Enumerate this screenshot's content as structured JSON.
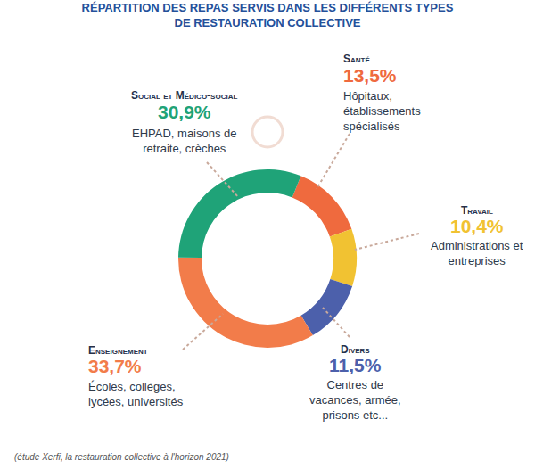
{
  "chart_data": {
    "type": "pie",
    "title": [
      "RÉPARTITION DES REPAS SERVIS DANS LES DIFFÉRENTS TYPES",
      "DE RESTAURATION COLLECTIVE"
    ],
    "categories": [
      "Santé",
      "Travail",
      "Divers",
      "Enseignement",
      "Social et Médico-social"
    ],
    "values": [
      13.5,
      10.4,
      11.5,
      33.7,
      30.9
    ],
    "value_labels": [
      "13,5%",
      "10,4%",
      "11,5%",
      "33,7%",
      "30,9%"
    ],
    "colors": [
      "#ef6a3e",
      "#f1c232",
      "#4c60ab",
      "#f27c4a",
      "#1fa378"
    ],
    "descriptions": [
      [
        "Hôpitaux,",
        "établissements",
        "spécialisés"
      ],
      [
        "Administrations et",
        "entreprises"
      ],
      [
        "Centres de",
        "vacances, armée,",
        "prisons etc..."
      ],
      [
        "Écoles, collèges,",
        "lycées, universités"
      ],
      [
        "EHPAD, maisons de",
        "retraite, crèches"
      ]
    ],
    "data_labels": true,
    "source": "(étude Xerfi, la restauration collective à l'horizon 2021)"
  }
}
